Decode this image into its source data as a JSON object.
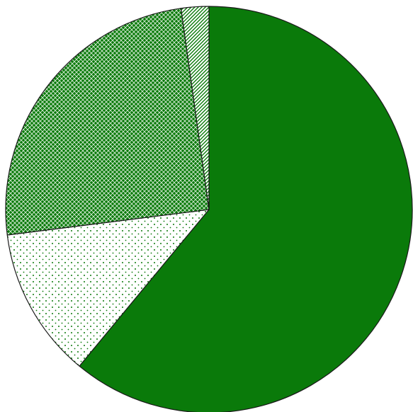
{
  "chart_data": {
    "type": "pie",
    "title": "",
    "start_angle_deg": 0,
    "direction": "clockwise",
    "edge_color": "#1a1a1a",
    "slices": [
      {
        "value": 61.0,
        "color": "#0a7a0a",
        "pattern": "solid"
      },
      {
        "value": 12.0,
        "color": "#0a7a0a",
        "pattern": "dots"
      },
      {
        "value": 24.8,
        "color": "#0a7a0a",
        "pattern": "crosshatch"
      },
      {
        "value": 2.2,
        "color": "#0a7a0a",
        "pattern": "diagonal"
      }
    ],
    "legend": null
  }
}
